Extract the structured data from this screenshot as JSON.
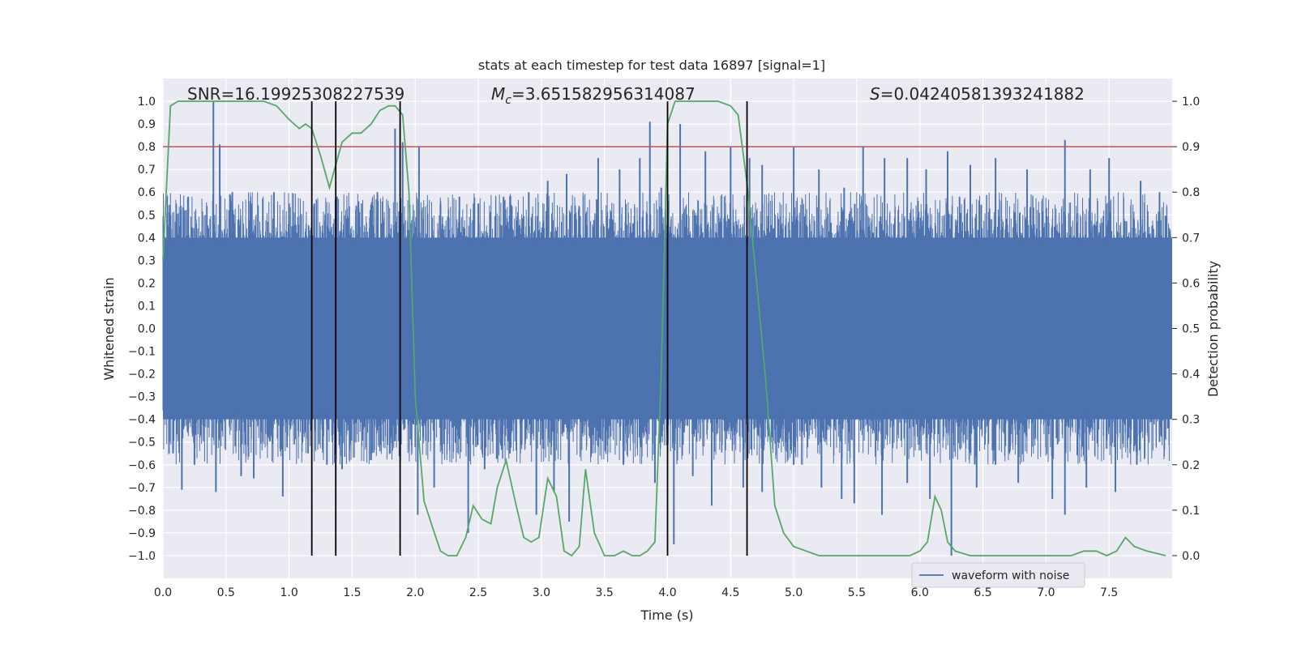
{
  "chart_data": {
    "type": "line",
    "title": "stats at each timestep for test data 16897 [signal=1]",
    "xlabel": "Time (s)",
    "ylabel_left": "Whitened strain",
    "ylabel_right": "Detection probability",
    "xlim": [
      0.0,
      8.0
    ],
    "ylim_left": [
      -1.1,
      1.1
    ],
    "ylim_right": [
      -0.05,
      1.05
    ],
    "grid": true,
    "x_ticks": [
      "0.0",
      "0.5",
      "1.0",
      "1.5",
      "2.0",
      "2.5",
      "3.0",
      "3.5",
      "4.0",
      "4.5",
      "5.0",
      "5.5",
      "6.0",
      "6.5",
      "7.0",
      "7.5"
    ],
    "y_left_ticks": [
      "1.0",
      "0.9",
      "0.8",
      "0.7",
      "0.6",
      "0.5",
      "0.4",
      "0.3",
      "0.2",
      "0.1",
      "0.0",
      "−0.1",
      "−0.2",
      "−0.3",
      "−0.4",
      "−0.5",
      "−0.6",
      "−0.7",
      "−0.8",
      "−0.9",
      "−1.0"
    ],
    "y_right_ticks": [
      "1.0",
      "0.9",
      "0.8",
      "0.7",
      "0.6",
      "0.5",
      "0.4",
      "0.3",
      "0.2",
      "0.1",
      "0.0"
    ],
    "annotations": {
      "snr": "SNR=16.19925308227539",
      "mc_symbol": "M",
      "mc_sub": "c",
      "mc_value": "=3.651582956314087",
      "s_symbol": "S",
      "s_value": "=0.04240581393241882"
    },
    "threshold": {
      "y": 0.8,
      "color": "#c44e52"
    },
    "vertical_lines": [
      1.18,
      1.37,
      1.88,
      4.0,
      4.63
    ],
    "waveform": {
      "name": "waveform with noise",
      "color": "#4c72b0",
      "band_upper": 0.4,
      "band_lower": -0.4,
      "peaks_pos": [
        [
          0.1,
          0.47
        ],
        [
          0.2,
          0.58
        ],
        [
          0.4,
          1.0
        ],
        [
          0.45,
          0.81
        ],
        [
          0.55,
          0.6
        ],
        [
          0.7,
          0.55
        ],
        [
          0.88,
          0.6
        ],
        [
          1.0,
          0.55
        ],
        [
          1.2,
          0.55
        ],
        [
          1.38,
          0.58
        ],
        [
          1.55,
          0.56
        ],
        [
          1.7,
          0.6
        ],
        [
          1.84,
          0.88
        ],
        [
          1.9,
          0.82
        ],
        [
          2.03,
          0.8
        ],
        [
          2.2,
          0.55
        ],
        [
          2.35,
          0.58
        ],
        [
          2.5,
          0.55
        ],
        [
          2.7,
          0.58
        ],
        [
          2.9,
          0.6
        ],
        [
          3.05,
          0.65
        ],
        [
          3.2,
          0.68
        ],
        [
          3.45,
          0.75
        ],
        [
          3.62,
          0.7
        ],
        [
          3.78,
          0.75
        ],
        [
          3.86,
          0.91
        ],
        [
          3.95,
          0.62
        ],
        [
          4.1,
          0.9
        ],
        [
          4.3,
          0.78
        ],
        [
          4.5,
          0.8
        ],
        [
          4.65,
          0.75
        ],
        [
          4.75,
          0.72
        ],
        [
          5.0,
          0.8
        ],
        [
          5.2,
          0.7
        ],
        [
          5.4,
          0.62
        ],
        [
          5.55,
          0.8
        ],
        [
          5.72,
          0.75
        ],
        [
          5.9,
          0.75
        ],
        [
          6.05,
          0.7
        ],
        [
          6.22,
          0.78
        ],
        [
          6.4,
          0.72
        ],
        [
          6.6,
          0.75
        ],
        [
          6.85,
          0.7
        ],
        [
          7.15,
          0.83
        ],
        [
          7.35,
          0.7
        ],
        [
          7.5,
          0.75
        ],
        [
          7.75,
          0.65
        ],
        [
          7.9,
          0.6
        ]
      ],
      "peaks_neg": [
        [
          0.08,
          -0.55
        ],
        [
          0.15,
          -0.71
        ],
        [
          0.25,
          -0.6
        ],
        [
          0.42,
          -0.72
        ],
        [
          0.62,
          -0.65
        ],
        [
          0.72,
          -0.66
        ],
        [
          0.95,
          -0.74
        ],
        [
          1.15,
          -0.55
        ],
        [
          1.3,
          -0.6
        ],
        [
          1.42,
          -0.62
        ],
        [
          1.65,
          -0.58
        ],
        [
          1.8,
          -0.55
        ],
        [
          2.02,
          -0.82
        ],
        [
          2.15,
          -0.7
        ],
        [
          2.42,
          -0.9
        ],
        [
          2.55,
          -0.62
        ],
        [
          2.75,
          -0.55
        ],
        [
          2.96,
          -0.82
        ],
        [
          3.1,
          -0.72
        ],
        [
          3.22,
          -0.85
        ],
        [
          3.4,
          -0.55
        ],
        [
          3.65,
          -0.6
        ],
        [
          3.9,
          -0.68
        ],
        [
          4.05,
          -0.95
        ],
        [
          4.2,
          -0.65
        ],
        [
          4.35,
          -0.78
        ],
        [
          4.6,
          -0.7
        ],
        [
          4.75,
          -0.72
        ],
        [
          5.0,
          -0.6
        ],
        [
          5.22,
          -0.7
        ],
        [
          5.38,
          -0.75
        ],
        [
          5.48,
          -0.77
        ],
        [
          5.7,
          -0.82
        ],
        [
          5.9,
          -0.68
        ],
        [
          6.08,
          -0.75
        ],
        [
          6.25,
          -1.0
        ],
        [
          6.45,
          -0.7
        ],
        [
          6.6,
          -0.6
        ],
        [
          6.78,
          -0.68
        ],
        [
          7.05,
          -0.75
        ],
        [
          7.15,
          -0.82
        ],
        [
          7.32,
          -0.7
        ],
        [
          7.55,
          -0.72
        ],
        [
          7.72,
          -0.6
        ],
        [
          7.9,
          -0.5
        ]
      ]
    },
    "probability": {
      "color": "#55a868",
      "x": [
        0.0,
        0.06,
        0.12,
        0.2,
        0.3,
        0.4,
        0.5,
        0.6,
        0.7,
        0.8,
        0.9,
        1.0,
        1.08,
        1.13,
        1.18,
        1.25,
        1.32,
        1.42,
        1.5,
        1.57,
        1.65,
        1.72,
        1.79,
        1.84,
        1.9,
        1.95,
        2.0,
        2.07,
        2.14,
        2.2,
        2.26,
        2.33,
        2.4,
        2.46,
        2.53,
        2.6,
        2.65,
        2.72,
        2.8,
        2.86,
        2.92,
        2.98,
        3.05,
        3.12,
        3.18,
        3.24,
        3.3,
        3.35,
        3.42,
        3.5,
        3.58,
        3.65,
        3.72,
        3.78,
        3.84,
        3.9,
        3.95,
        4.0,
        4.06,
        4.12,
        4.2,
        4.3,
        4.4,
        4.5,
        4.56,
        4.63,
        4.7,
        4.78,
        4.85,
        4.92,
        5.0,
        5.1,
        5.2,
        5.4,
        5.6,
        5.8,
        5.92,
        6.0,
        6.06,
        6.12,
        6.17,
        6.22,
        6.28,
        6.4,
        6.6,
        6.8,
        7.0,
        7.2,
        7.3,
        7.4,
        7.48,
        7.56,
        7.63,
        7.7,
        7.8,
        7.95
      ],
      "y": [
        0.65,
        0.99,
        1.0,
        1.0,
        1.0,
        1.0,
        1.0,
        1.0,
        1.0,
        1.0,
        0.99,
        0.96,
        0.94,
        0.95,
        0.94,
        0.88,
        0.81,
        0.91,
        0.93,
        0.93,
        0.95,
        0.98,
        0.99,
        0.99,
        0.97,
        0.8,
        0.35,
        0.12,
        0.06,
        0.01,
        0.0,
        0.0,
        0.04,
        0.11,
        0.08,
        0.07,
        0.15,
        0.21,
        0.11,
        0.04,
        0.03,
        0.04,
        0.17,
        0.13,
        0.01,
        0.0,
        0.02,
        0.19,
        0.05,
        0.0,
        0.0,
        0.01,
        0.0,
        0.0,
        0.01,
        0.03,
        0.4,
        0.95,
        1.0,
        1.0,
        1.0,
        1.0,
        1.0,
        0.99,
        0.97,
        0.82,
        0.62,
        0.38,
        0.11,
        0.05,
        0.02,
        0.01,
        0.0,
        0.0,
        0.0,
        0.0,
        0.0,
        0.01,
        0.03,
        0.13,
        0.1,
        0.03,
        0.01,
        0.0,
        0.0,
        0.0,
        0.0,
        0.0,
        0.01,
        0.01,
        0.0,
        0.01,
        0.04,
        0.02,
        0.01,
        0.0
      ]
    },
    "legend": {
      "entries": [
        "waveform with noise"
      ],
      "placement": "bottom-right"
    }
  }
}
